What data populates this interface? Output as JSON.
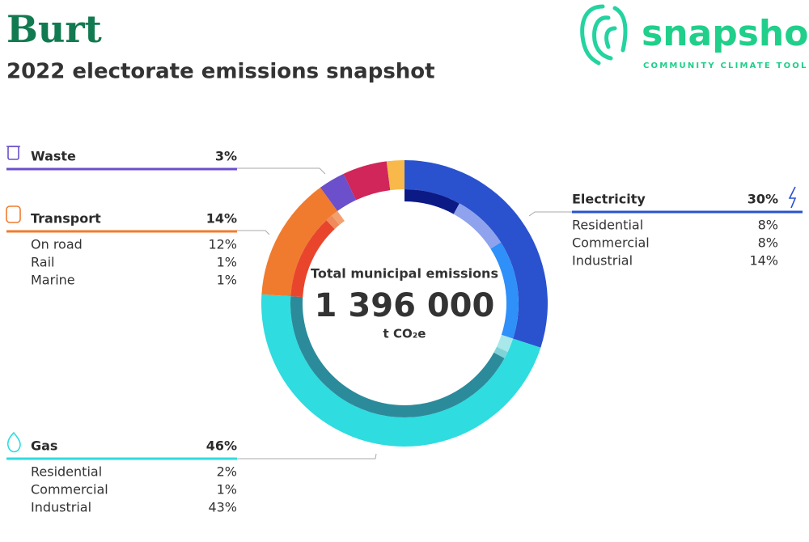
{
  "logo": {
    "name": "snapshot",
    "tagline": "COMMUNITY CLIMATE TOOL"
  },
  "chart_data": {
    "type": "donut",
    "title": "Burt",
    "subtitle": "2022 electorate emissions snapshot",
    "center_label": "Total municipal emissions",
    "total": {
      "value": 1396000,
      "label": "1 396 000"
    },
    "unit": "t CO₂e",
    "categories": [
      "Electricity",
      "Gas",
      "Transport",
      "Waste",
      null,
      null
    ],
    "values": [
      30,
      46,
      14,
      3,
      5,
      2
    ],
    "value_labels": [
      "30%",
      "46%",
      "14%",
      "3%",
      null,
      null
    ],
    "colors": [
      "#2a52cf",
      "#2fdcdf",
      "#f07b2e",
      "#6b4fcb",
      "#d0265a",
      "#f8b94a"
    ],
    "breakdown": [
      {
        "categories": [
          "Residential",
          "Commercial",
          "Industrial"
        ],
        "values": [
          8,
          8,
          14
        ],
        "value_labels": [
          "8%",
          "8%",
          "14%"
        ],
        "colors": [
          "#0c1a86",
          "#8fa2ee",
          "#2e90f8"
        ]
      },
      {
        "categories": [
          "Residential",
          "Commercial",
          "Industrial"
        ],
        "values": [
          2,
          1,
          43
        ],
        "value_labels": [
          "2%",
          "1%",
          "43%"
        ],
        "colors": [
          "#a9e8ea",
          "#7fd3d8",
          "#2b8b9b"
        ]
      },
      {
        "categories": [
          "On road",
          "Rail",
          "Marine"
        ],
        "values": [
          12,
          1,
          1
        ],
        "value_labels": [
          "12%",
          "1%",
          "1%"
        ],
        "colors": [
          "#e9452d",
          "#f08a5a",
          "#f3a070"
        ]
      }
    ]
  }
}
